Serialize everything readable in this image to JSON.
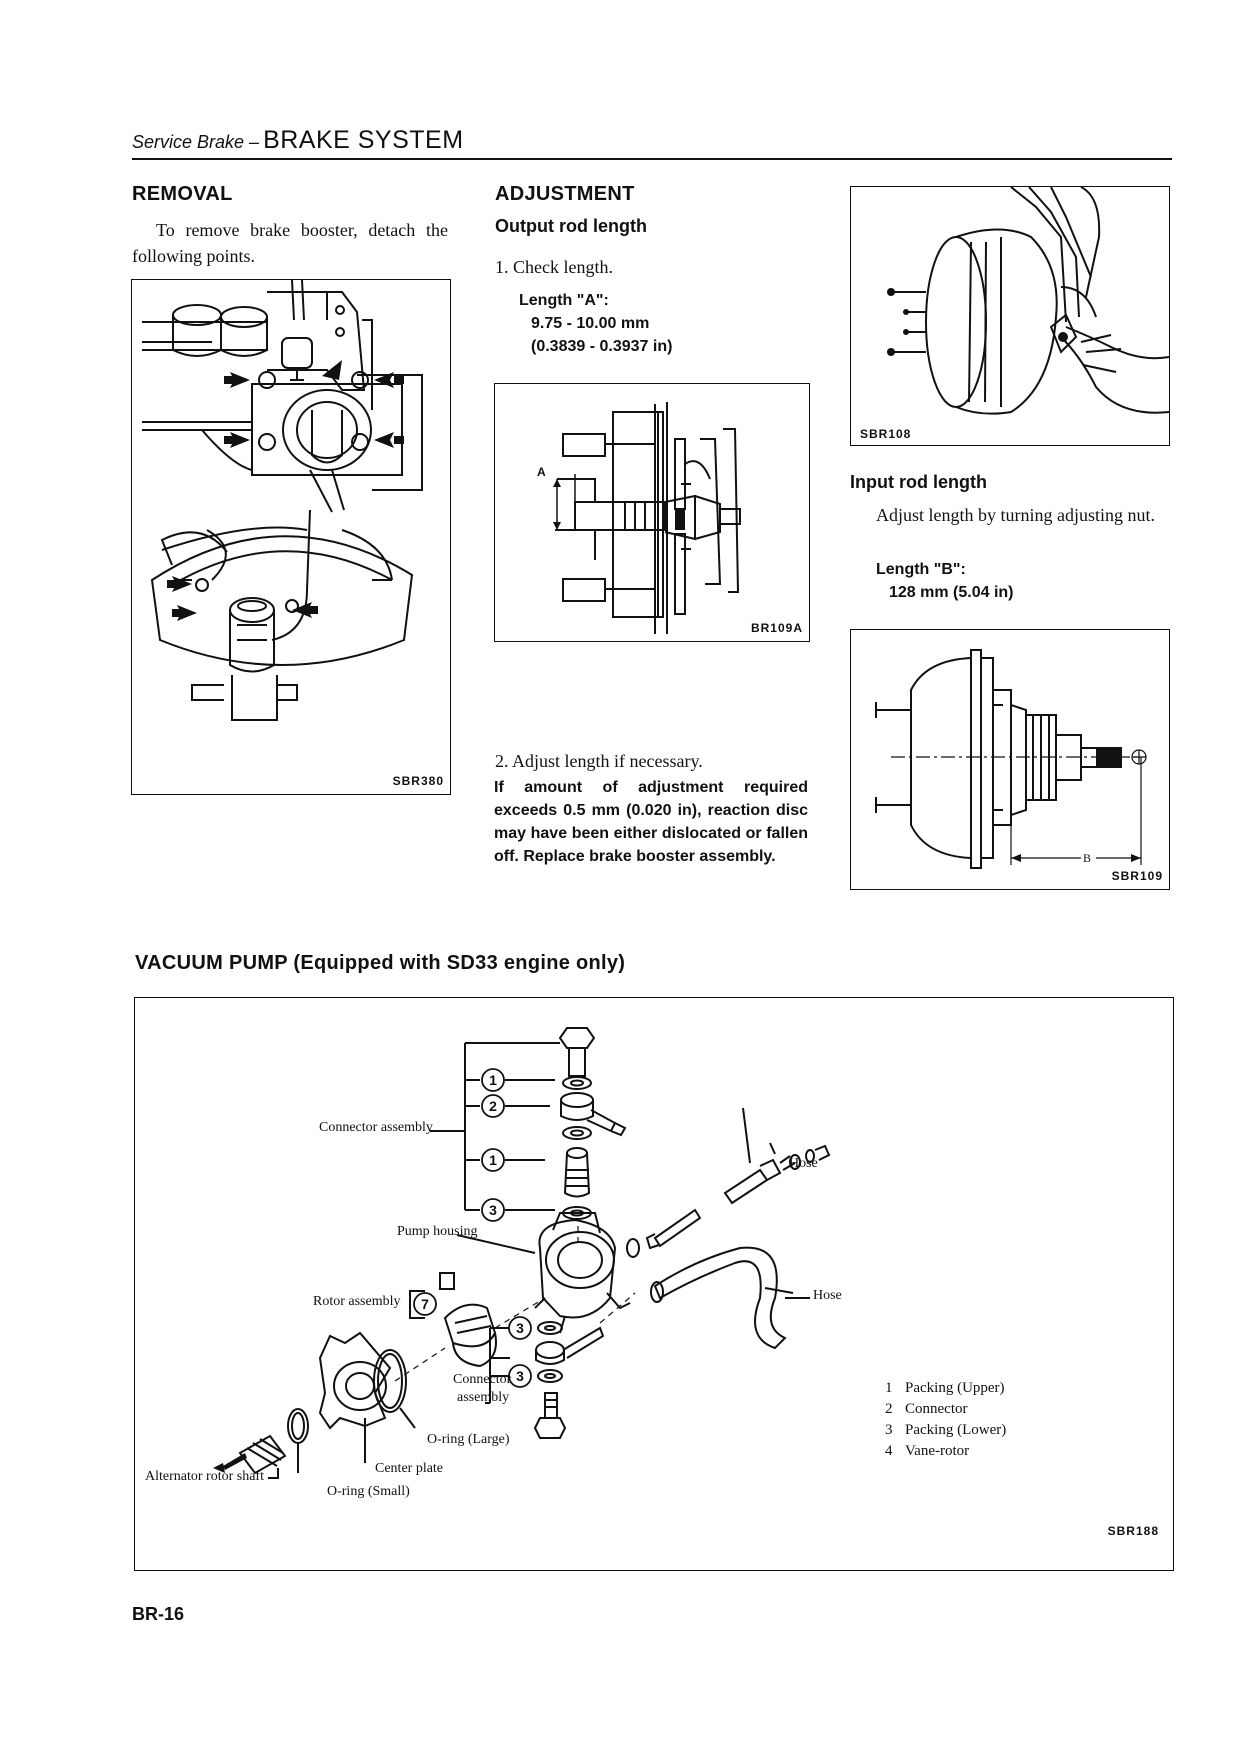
{
  "header": {
    "section": "Service Brake –",
    "title": "BRAKE SYSTEM"
  },
  "removal": {
    "heading": "REMOVAL",
    "text": "To remove brake booster, detach the following points.",
    "figure_id": "SBR380"
  },
  "adjustment": {
    "heading": "ADJUSTMENT",
    "output_heading": "Output rod length",
    "step1": "1.   Check length.",
    "length_a_label": "Length \"A\":",
    "length_a_mm": "9.75 - 10.00 mm",
    "length_a_in": "(0.3839 - 0.3937 in)",
    "figure_id": "BR109A",
    "dim_label": "A",
    "step2": "2.   Adjust length if necessary.",
    "warning": "If amount of adjustment required exceeds 0.5 mm (0.020 in), reaction disc may have been either dislocated or fallen off. Replace brake booster assembly."
  },
  "input_rod": {
    "photo_id": "SBR108",
    "heading": "Input rod length",
    "text": "Adjust length by turning adjusting nut.",
    "length_b_label": "Length \"B\":",
    "length_b_value": "128 mm (5.04 in)",
    "figure_id": "SBR109",
    "dim_label": "B"
  },
  "vacuum_pump": {
    "heading": "VACUUM PUMP (Equipped with SD33 engine only)",
    "figure_id": "SBR188",
    "callouts": {
      "connector_assembly_top": "Connector assembly",
      "hose_upper": "Hose",
      "pump_housing": "Pump housing",
      "rotor_assembly": "Rotor assembly",
      "hose_right": "Hose",
      "connector_assembly_bottom_1": "Connector",
      "connector_assembly_bottom_2": "assembly",
      "oring_large": "O-ring (Large)",
      "center_plate": "Center plate",
      "oring_small": "O-ring (Small)",
      "alternator_shaft": "Alternator rotor shaft"
    },
    "circle_numbers": [
      "1",
      "2",
      "1",
      "3",
      "7",
      "3",
      "3"
    ],
    "legend": [
      {
        "num": "1",
        "label": "Packing (Upper)"
      },
      {
        "num": "2",
        "label": "Connector"
      },
      {
        "num": "3",
        "label": "Packing (Lower)"
      },
      {
        "num": "4",
        "label": "Vane-rotor"
      }
    ]
  },
  "footer": {
    "page": "BR-16"
  }
}
